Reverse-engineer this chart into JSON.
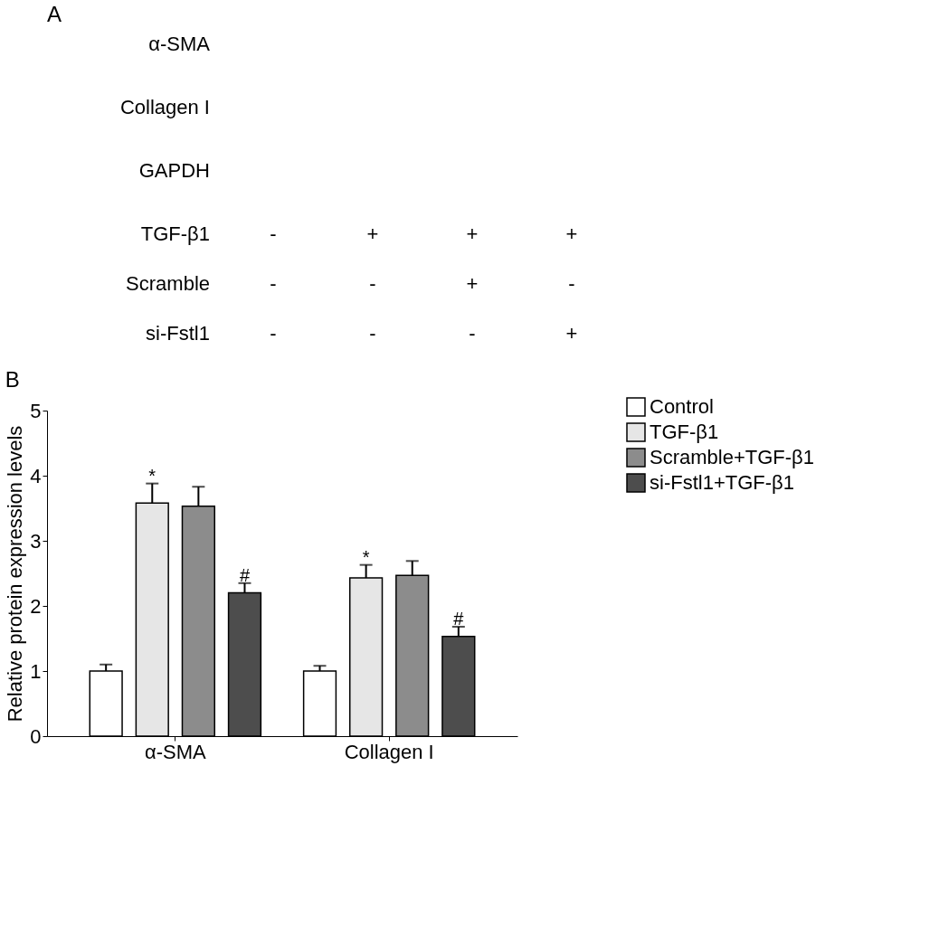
{
  "chart_data": [
    {
      "type": "other",
      "title": "A",
      "annotations": [
        "α-SMA",
        "Collagen I",
        "GAPDH",
        "TGF-β1",
        "-",
        "+",
        "+",
        "+",
        "Scramble",
        "-",
        "-",
        "+",
        "-",
        "si-Fstl1",
        "-",
        "-",
        "-",
        "+"
      ]
    },
    {
      "type": "bar",
      "title": "B",
      "ylabel": "Relative protein expression levels",
      "categories": [
        "α-SMA",
        "Collagen I"
      ],
      "series": [
        {
          "name": "Control",
          "color": "#ffffff",
          "values": [
            1.0,
            1.0
          ],
          "errors": [
            0.1,
            0.08
          ]
        },
        {
          "name": "TGF-β1",
          "color": "#e6e6e6",
          "values": [
            3.58,
            2.43
          ],
          "errors": [
            0.3,
            0.2
          ]
        },
        {
          "name": "Scramble+TGF-β1",
          "color": "#8c8c8c",
          "values": [
            3.53,
            2.47
          ],
          "errors": [
            0.3,
            0.22
          ]
        },
        {
          "name": "si-Fstl1+TGF-β1",
          "color": "#4d4d4d",
          "values": [
            2.2,
            1.53
          ],
          "errors": [
            0.15,
            0.15
          ]
        }
      ],
      "ylim": [
        0,
        5
      ],
      "yticks": [
        0,
        1,
        2,
        3,
        4,
        5
      ],
      "grid": false,
      "legend": "top right",
      "annotations": [
        "*",
        "#",
        "*",
        "#"
      ]
    }
  ]
}
